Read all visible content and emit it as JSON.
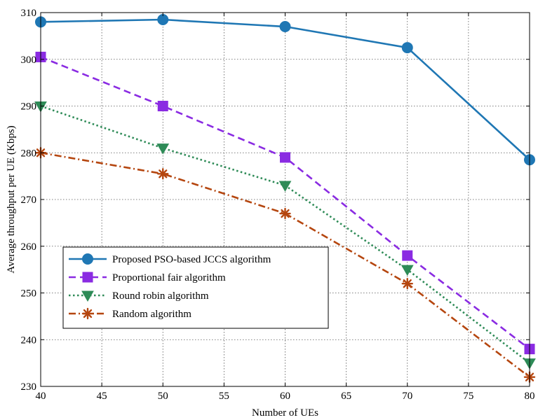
{
  "chart_data": {
    "type": "line",
    "title": "",
    "xlabel": "Number of UEs",
    "ylabel": "Average throughput per UE (Kbps)",
    "xlim": [
      40,
      80
    ],
    "ylim": [
      230,
      310
    ],
    "xticks": [
      40,
      45,
      50,
      55,
      60,
      65,
      70,
      75,
      80
    ],
    "yticks": [
      230,
      240,
      250,
      260,
      270,
      280,
      290,
      300,
      310
    ],
    "grid": true,
    "legend_position": "lower-left",
    "x": [
      40,
      50,
      60,
      70,
      80
    ],
    "series": [
      {
        "name": "Proposed PSO-based JCCS algorithm",
        "values": [
          308,
          308.5,
          307,
          302.5,
          278.5
        ],
        "color": "#1f77b4",
        "marker": "circle",
        "dash": "solid"
      },
      {
        "name": "Proportional fair algorithm",
        "values": [
          300.5,
          290,
          279,
          258,
          238
        ],
        "color": "#8a2be2",
        "marker": "square",
        "dash": "dashed"
      },
      {
        "name": "Round robin algorithm",
        "values": [
          290,
          281,
          273,
          255,
          235
        ],
        "color": "#2e8b57",
        "marker": "triangle-down",
        "dash": "dotted"
      },
      {
        "name": "Random algorithm",
        "values": [
          280,
          275.5,
          267,
          252,
          232
        ],
        "color": "#b5460f",
        "marker": "asterisk",
        "dash": "dash-dot"
      }
    ]
  }
}
